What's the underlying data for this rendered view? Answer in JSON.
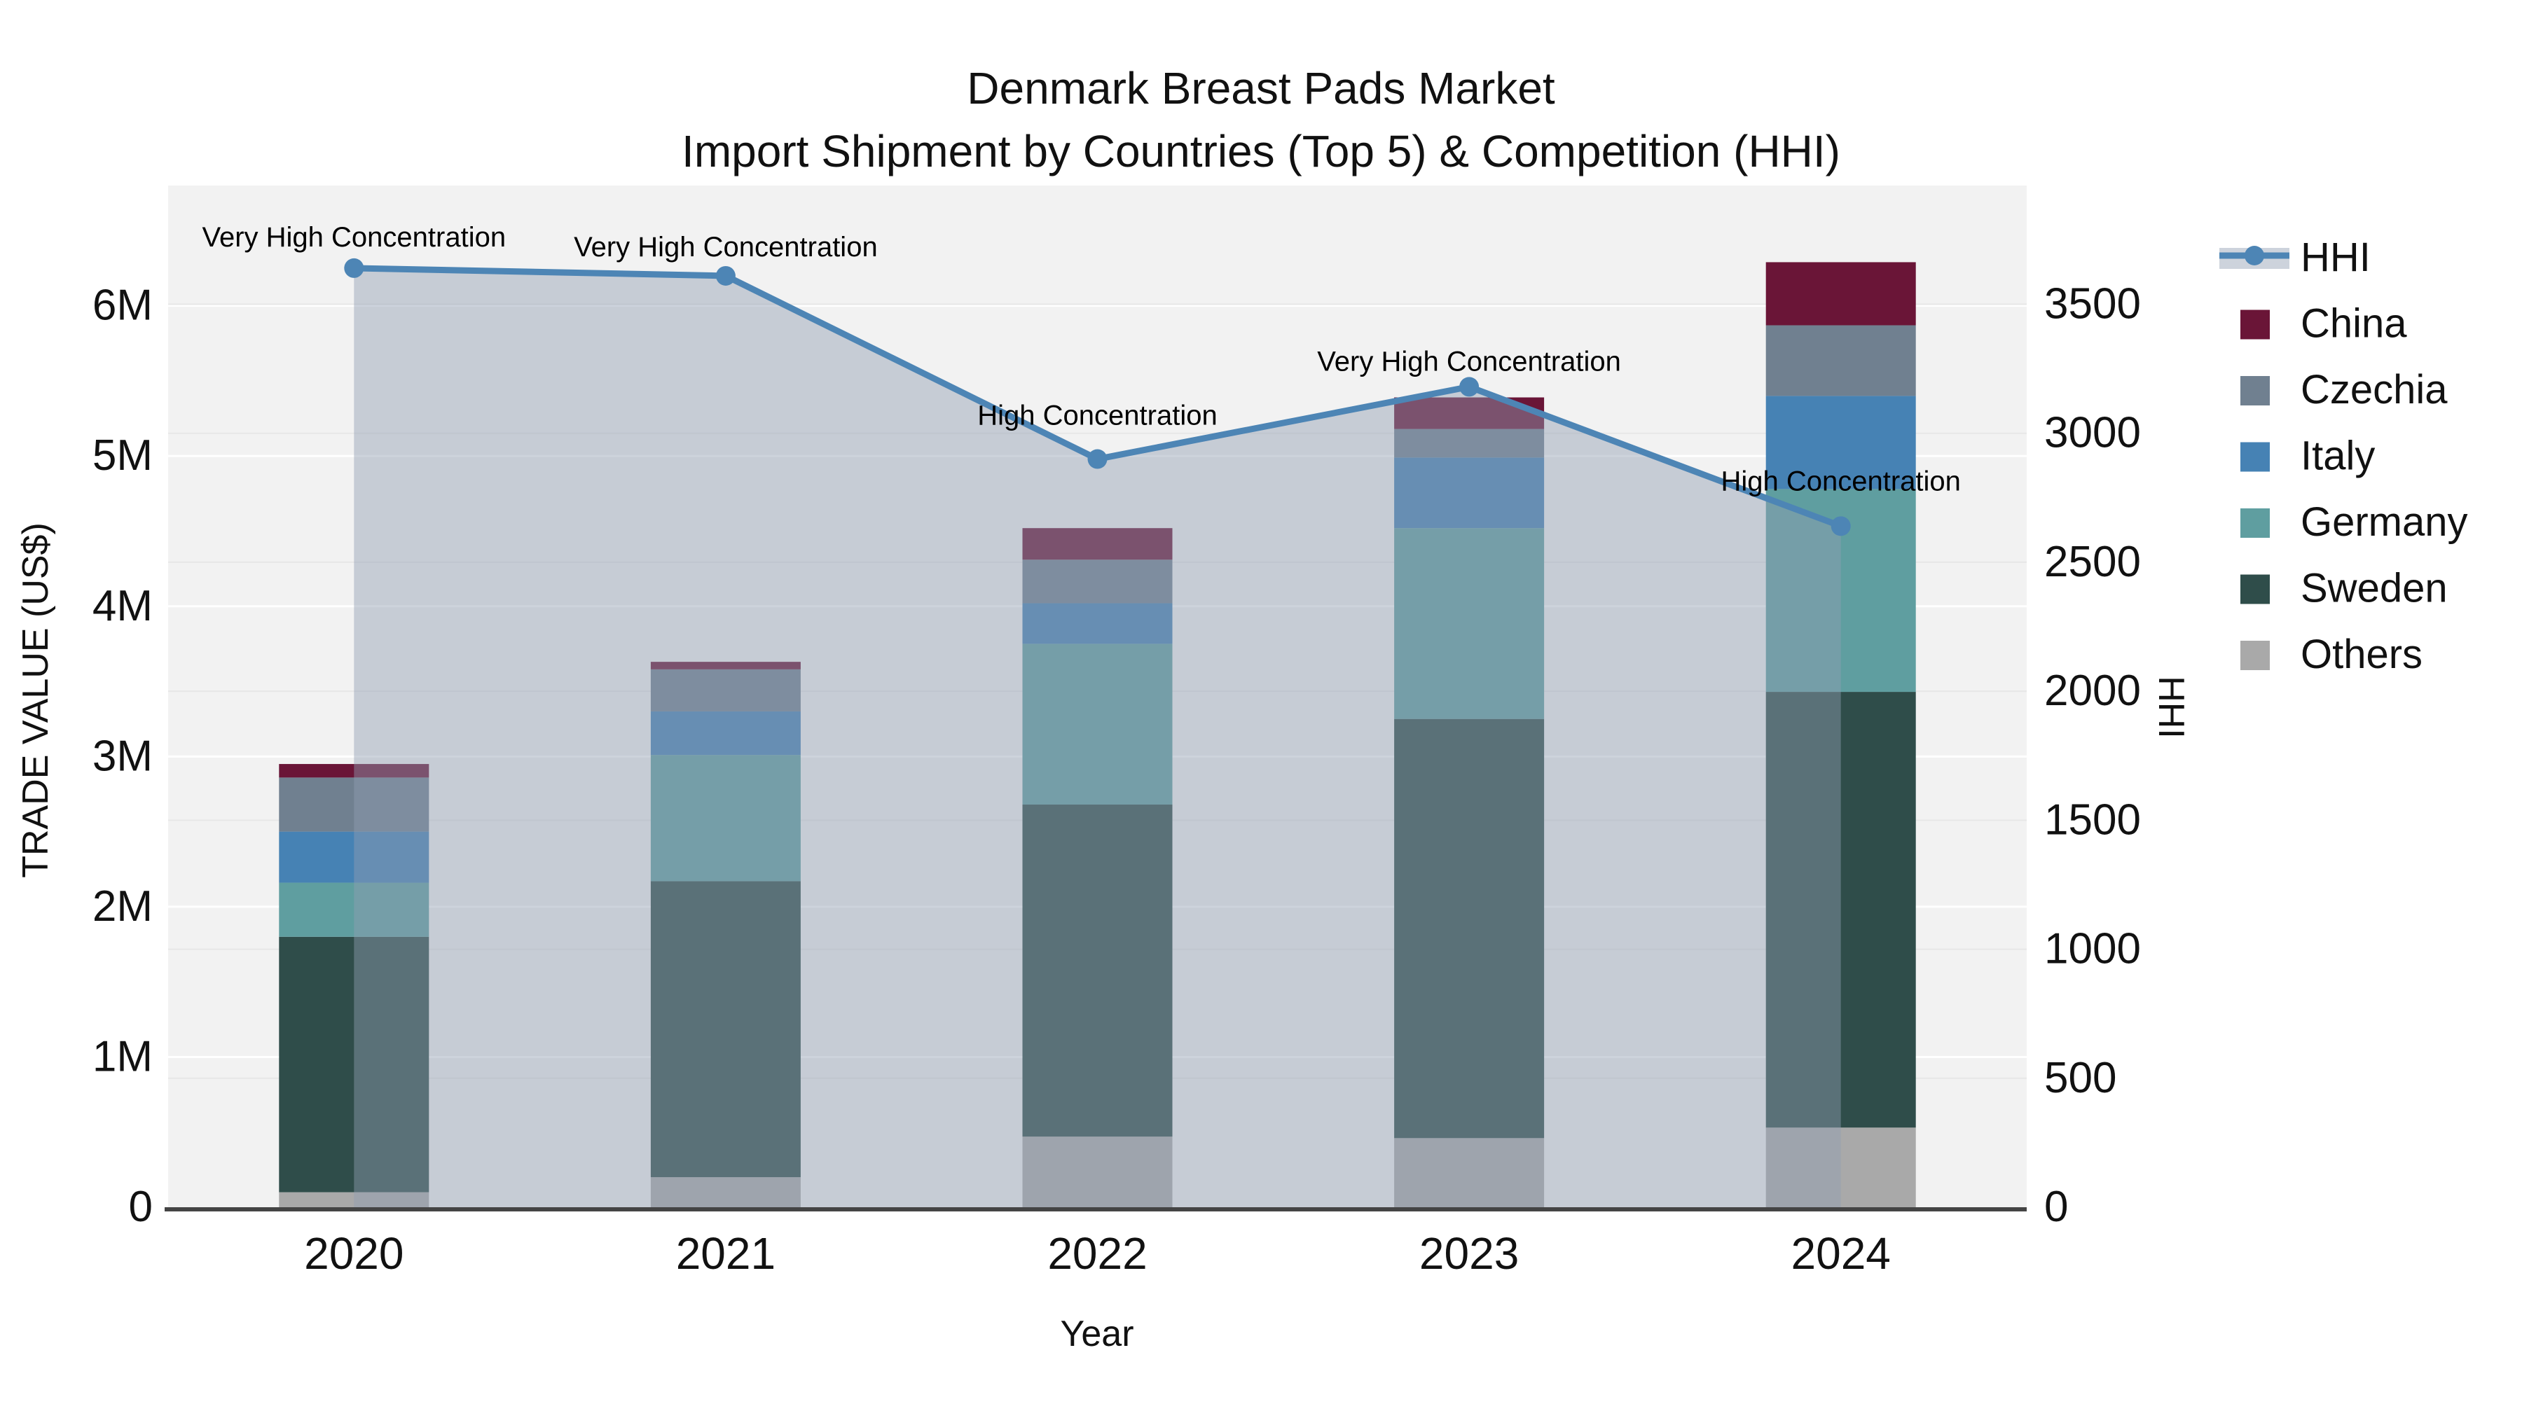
{
  "title": {
    "line1": "Denmark Breast Pads Market",
    "line2": "Import Shipment by Countries (Top 5) & Competition (HHI)"
  },
  "axes": {
    "y_left": {
      "title": "TRADE VALUE (US$)",
      "ticks": [
        "0",
        "1M",
        "2M",
        "3M",
        "4M",
        "5M",
        "6M"
      ],
      "tick_values": [
        0,
        1,
        2,
        3,
        4,
        5,
        6
      ],
      "max": 6.8
    },
    "y_right": {
      "title": "HHI",
      "ticks": [
        "0",
        "500",
        "1000",
        "1500",
        "2000",
        "2500",
        "3000",
        "3500"
      ],
      "tick_values": [
        0,
        500,
        1000,
        1500,
        2000,
        2500,
        3000,
        3500
      ],
      "max": 3960
    },
    "x": {
      "title": "Year",
      "ticks": [
        "2020",
        "2021",
        "2022",
        "2023",
        "2024"
      ]
    }
  },
  "legend": {
    "order": [
      "HHI",
      "China",
      "Czechia",
      "Italy",
      "Germany",
      "Sweden",
      "Others"
    ]
  },
  "colors": {
    "plot_bg": "#f2f2f2",
    "grid_left": "#ffffff",
    "grid_right": "#e7e7e7",
    "axis_line": "#444444",
    "hhi_line": "#4d85b5",
    "hhi_fill": "rgba(145,158,178,0.45)",
    "text": "#111111"
  },
  "chart_data": {
    "type": "bar",
    "subtype": "stacked-bars-with-line-overlay",
    "categories": [
      "2020",
      "2021",
      "2022",
      "2023",
      "2024"
    ],
    "unit": "trade value in US$ millions (left axis), HHI index (right axis)",
    "series": [
      {
        "name": "Others",
        "color": "#a9a9a9",
        "values": [
          0.1,
          0.2,
          0.47,
          0.46,
          0.53
        ]
      },
      {
        "name": "Sweden",
        "color": "#2f4d4a",
        "values": [
          1.7,
          1.97,
          2.21,
          2.79,
          2.9
        ]
      },
      {
        "name": "Germany",
        "color": "#5f9ea0",
        "values": [
          0.36,
          0.84,
          1.07,
          1.27,
          1.35
        ]
      },
      {
        "name": "Italy",
        "color": "#4682b4",
        "values": [
          0.34,
          0.29,
          0.27,
          0.47,
          0.62
        ]
      },
      {
        "name": "Czechia",
        "color": "#708090",
        "values": [
          0.36,
          0.28,
          0.29,
          0.19,
          0.47
        ]
      },
      {
        "name": "China",
        "color": "#6a1537",
        "values": [
          0.09,
          0.05,
          0.21,
          0.21,
          0.42
        ]
      }
    ],
    "totals": [
      2.95,
      3.63,
      4.52,
      5.39,
      6.29
    ],
    "line_series": {
      "name": "HHI",
      "values": [
        3640,
        3610,
        2900,
        3180,
        2640
      ]
    },
    "annotations": {
      "texts": [
        "Very High Concentration",
        "Very High Concentration",
        "High Concentration",
        "Very High Concentration",
        "High Concentration"
      ],
      "offsets_above_point": [
        45,
        42,
        63,
        37,
        65
      ]
    },
    "title": "Denmark Breast Pads Market — Import Shipment by Countries (Top 5) & Competition (HHI)",
    "xlabel": "Year",
    "ylabel_left": "TRADE VALUE (US$)",
    "ylabel_right": "HHI",
    "ylim_left": [
      0,
      6800000
    ],
    "ylim_right": [
      0,
      3960
    ],
    "grid": true,
    "legend_position": "right"
  }
}
